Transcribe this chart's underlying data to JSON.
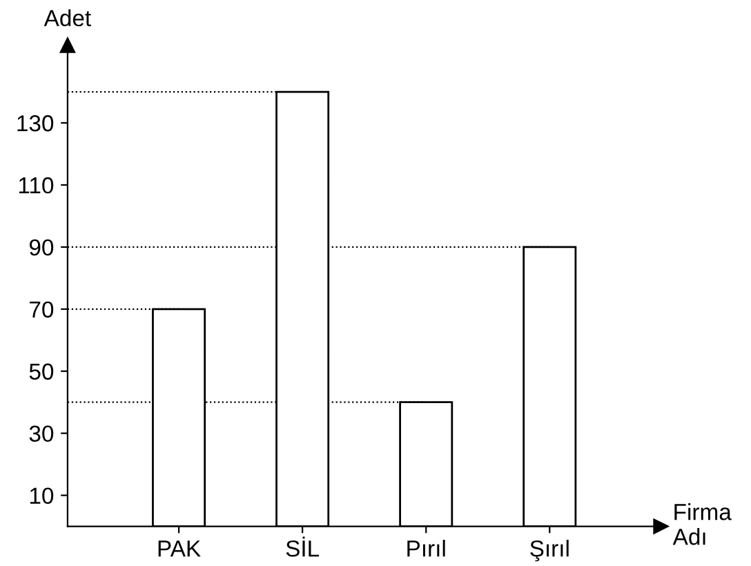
{
  "chart_data": {
    "type": "bar",
    "xlabel": "Firma Adı",
    "ylabel": "Adet",
    "categories": [
      "PAK",
      "SİL",
      "Pırıl",
      "Şırıl"
    ],
    "values": [
      70,
      140,
      40,
      90
    ],
    "color": "#ffffff",
    "ylim": [
      0,
      155
    ],
    "yticks": [
      10,
      30,
      50,
      70,
      90,
      110,
      130
    ],
    "ref_lines": [
      {
        "axis": "y",
        "value": 140,
        "line_style": "dotted",
        "color": "#000000"
      },
      {
        "axis": "y",
        "value": 90,
        "line_style": "dotted",
        "color": "#000000"
      },
      {
        "axis": "y",
        "value": 70,
        "line_style": "dotted",
        "color": "#000000"
      },
      {
        "axis": "y",
        "value": 40,
        "line_style": "dotted",
        "color": "#000000"
      }
    ],
    "grid": false,
    "legend": false
  }
}
